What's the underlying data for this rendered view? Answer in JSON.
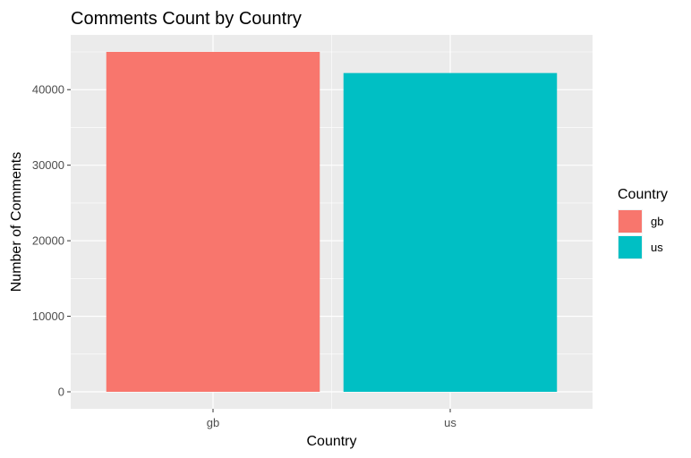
{
  "chart_data": {
    "type": "bar",
    "title": "Comments Count by Country",
    "xlabel": "Country",
    "ylabel": "Number of Comments",
    "categories": [
      "gb",
      "us"
    ],
    "values": [
      45000,
      42200
    ],
    "colors": [
      "#F8766D",
      "#00BFC4"
    ],
    "ylim": [
      -2250,
      47250
    ],
    "yticks": [
      0,
      10000,
      20000,
      30000,
      40000
    ],
    "ytick_labels": [
      "0",
      "10000",
      "20000",
      "30000",
      "40000"
    ],
    "grid": true,
    "panel_background": "#EBEBEB",
    "legend": {
      "title": "Country",
      "placement": "right",
      "entries": [
        "gb",
        "us"
      ]
    }
  }
}
